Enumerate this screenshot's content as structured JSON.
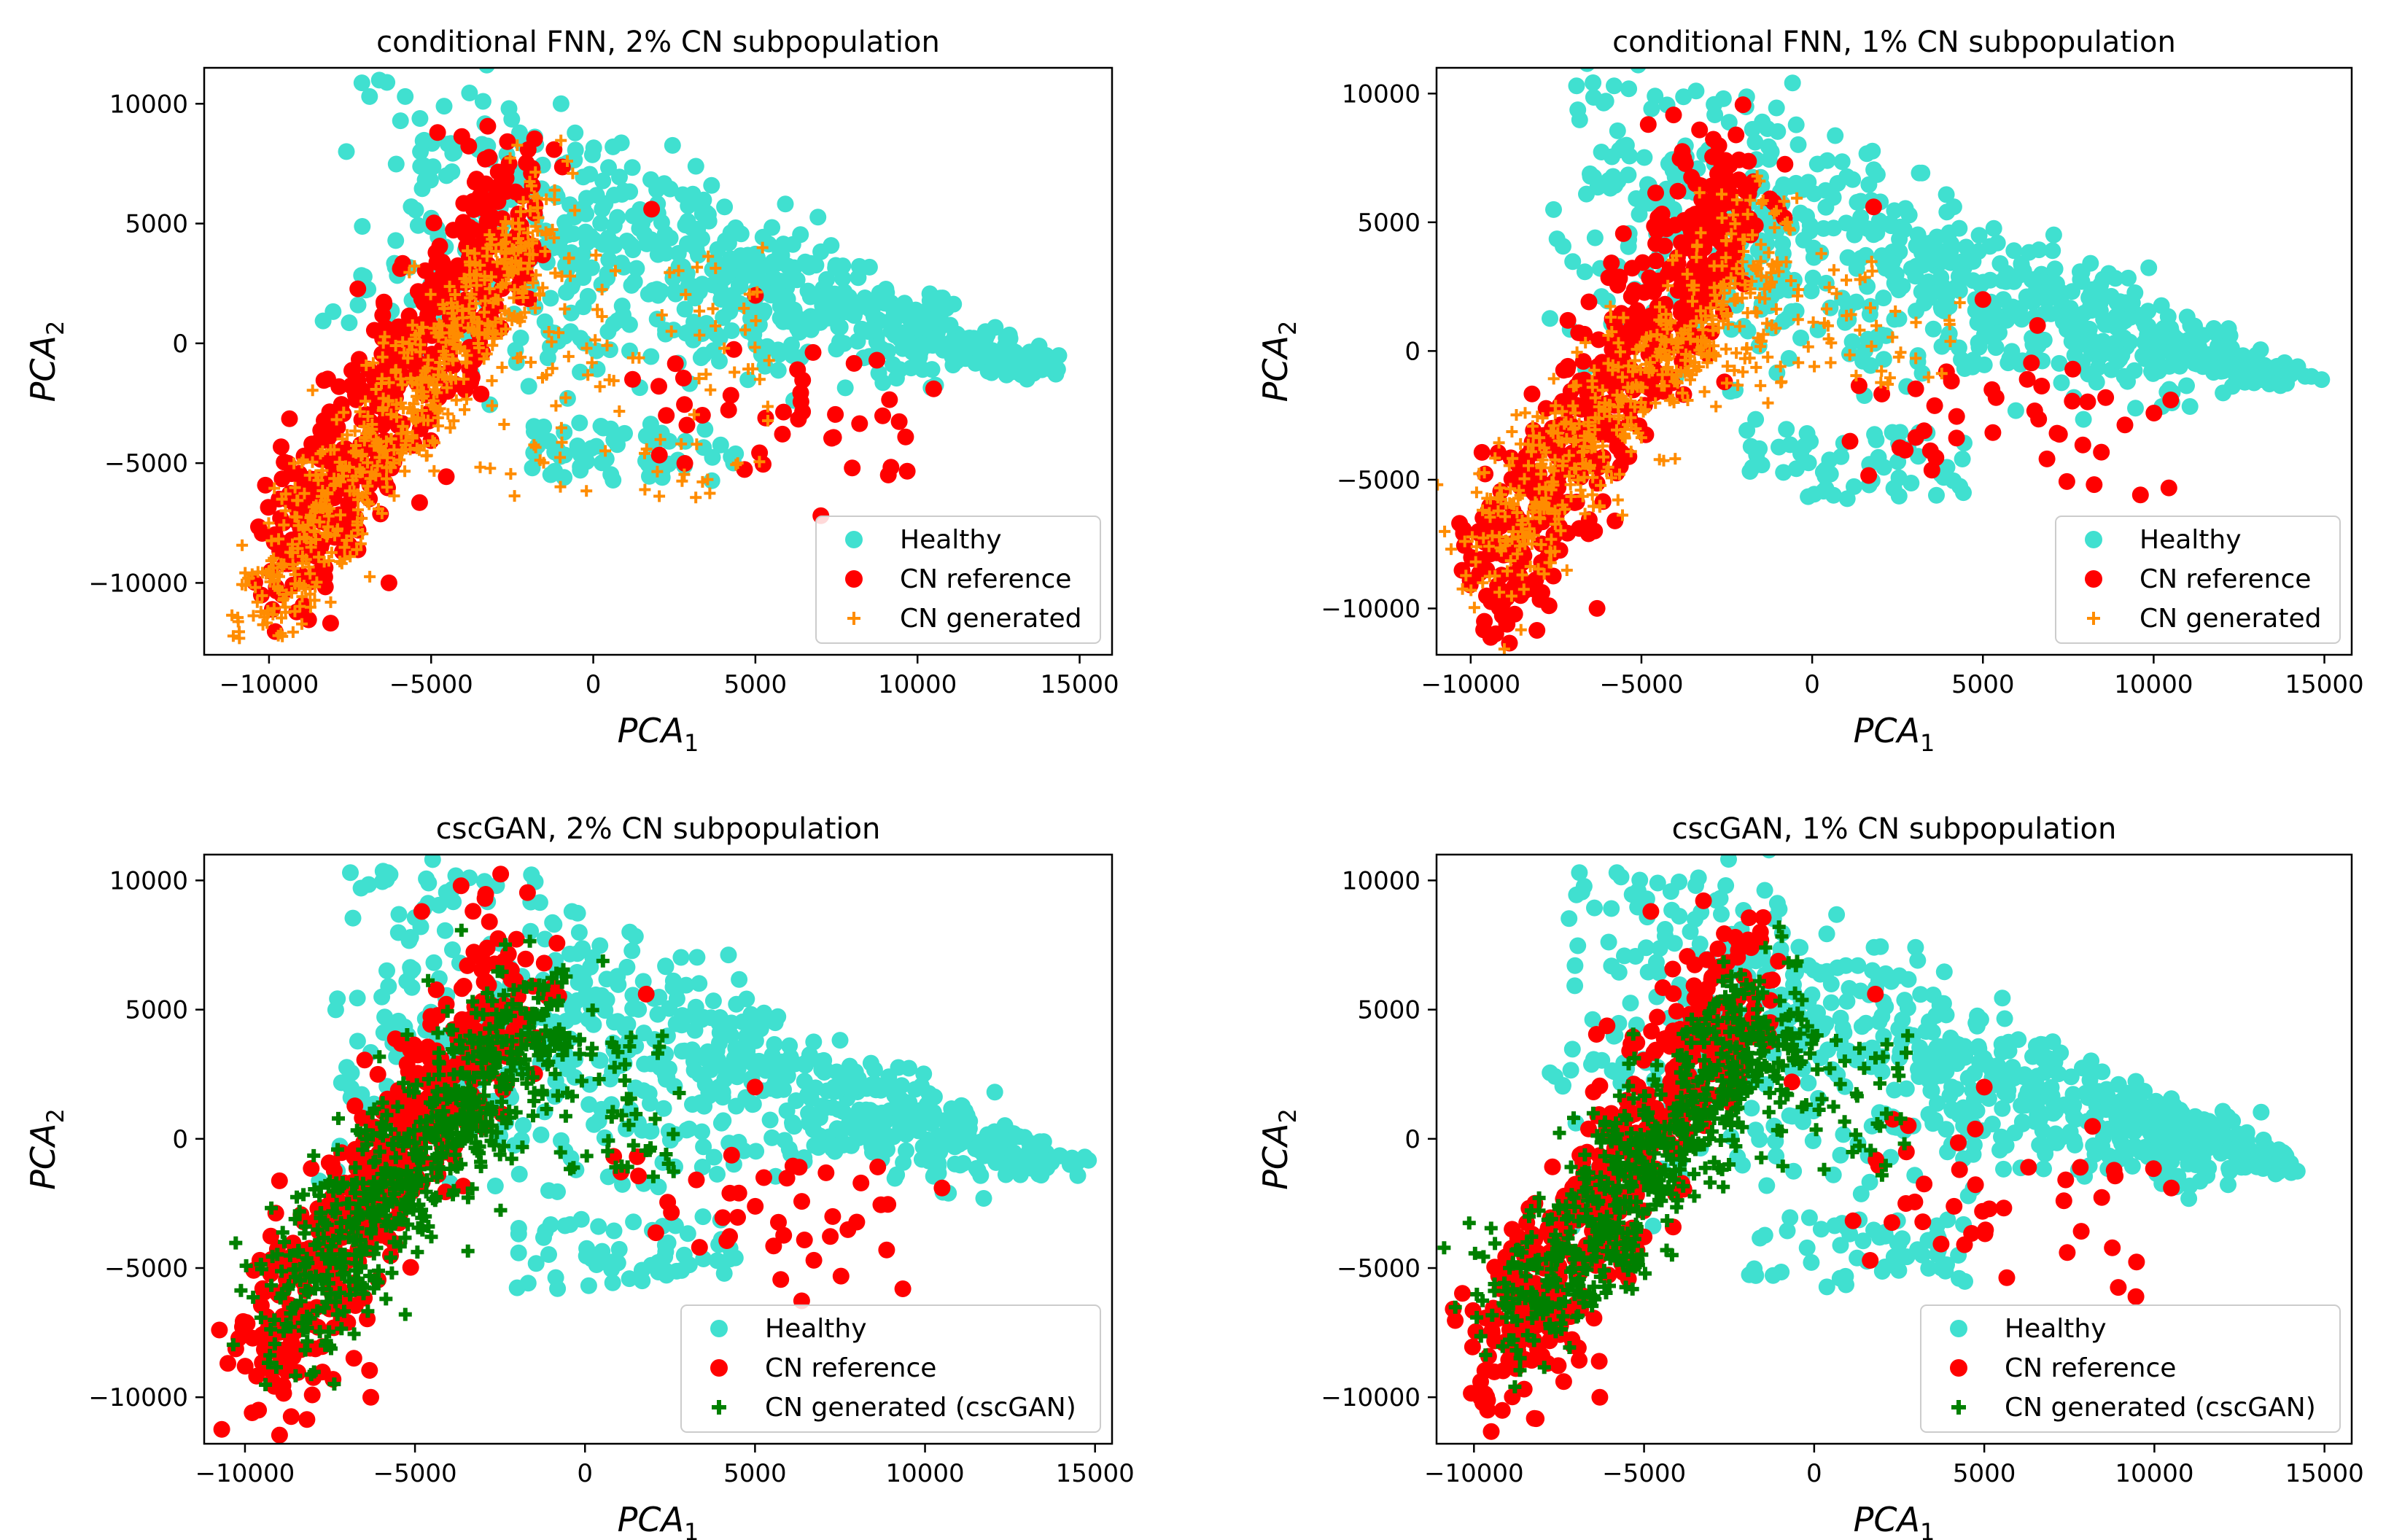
{
  "figure": {
    "colors": {
      "healthy": "#40E0D0",
      "cn_reference": "#FF0000",
      "cn_generated": "#FF8C00",
      "cn_generated_cscgan": "#008000"
    }
  },
  "chart_data": [
    {
      "type": "scatter",
      "title": "conditional FNN, 2% CN subpopulation",
      "xlabel": "PCA",
      "xlabel_sub": "1",
      "ylabel": "PCA",
      "ylabel_sub": "2",
      "xlim": [
        -12000,
        16000
      ],
      "ylim": [
        -13000,
        11500
      ],
      "xticks": [
        -10000,
        -5000,
        0,
        5000,
        10000,
        15000
      ],
      "xtick_labels": [
        "−10000",
        "−5000",
        "0",
        "5000",
        "10000",
        "15000"
      ],
      "yticks": [
        -10000,
        -5000,
        0,
        5000,
        10000
      ],
      "ytick_labels": [
        "−10000",
        "−5000",
        "0",
        "5000",
        "10000"
      ],
      "legend_position": "lower-right",
      "series": [
        {
          "name": "Healthy",
          "marker": "circle",
          "color": "#40E0D0"
        },
        {
          "name": "CN reference",
          "marker": "circle",
          "color": "#FF0000"
        },
        {
          "name": "CN generated",
          "marker": "plus",
          "color": "#FF8C00"
        }
      ]
    },
    {
      "type": "scatter",
      "title": "conditional FNN, 1% CN subpopulation",
      "xlabel": "PCA",
      "xlabel_sub": "1",
      "ylabel": "PCA",
      "ylabel_sub": "2",
      "xlim": [
        -11000,
        15800
      ],
      "ylim": [
        -11800,
        11000
      ],
      "xticks": [
        -10000,
        -5000,
        0,
        5000,
        10000,
        15000
      ],
      "xtick_labels": [
        "−10000",
        "−5000",
        "0",
        "5000",
        "10000",
        "15000"
      ],
      "yticks": [
        -10000,
        -5000,
        0,
        5000,
        10000
      ],
      "ytick_labels": [
        "−10000",
        "−5000",
        "0",
        "5000",
        "10000"
      ],
      "legend_position": "lower-right",
      "series": [
        {
          "name": "Healthy",
          "marker": "circle",
          "color": "#40E0D0"
        },
        {
          "name": "CN reference",
          "marker": "circle",
          "color": "#FF0000"
        },
        {
          "name": "CN generated",
          "marker": "plus",
          "color": "#FF8C00"
        }
      ]
    },
    {
      "type": "scatter",
      "title": "cscGAN, 2% CN subpopulation",
      "xlabel": "PCA",
      "xlabel_sub": "1",
      "ylabel": "PCA",
      "ylabel_sub": "2",
      "xlim": [
        -11200,
        15500
      ],
      "ylim": [
        -11800,
        11000
      ],
      "xticks": [
        -10000,
        -5000,
        0,
        5000,
        10000,
        15000
      ],
      "xtick_labels": [
        "−10000",
        "−5000",
        "0",
        "5000",
        "10000",
        "15000"
      ],
      "yticks": [
        -10000,
        -5000,
        0,
        5000,
        10000
      ],
      "ytick_labels": [
        "−10000",
        "−5000",
        "0",
        "5000",
        "10000"
      ],
      "legend_position": "lower-right",
      "series": [
        {
          "name": "Healthy",
          "marker": "circle",
          "color": "#40E0D0"
        },
        {
          "name": "CN reference",
          "marker": "circle",
          "color": "#FF0000"
        },
        {
          "name": "CN generated (cscGAN)",
          "marker": "plus",
          "color": "#008000"
        }
      ]
    },
    {
      "type": "scatter",
      "title": "cscGAN, 1% CN subpopulation",
      "xlabel": "PCA",
      "xlabel_sub": "1",
      "ylabel": "PCA",
      "ylabel_sub": "2",
      "xlim": [
        -11100,
        15800
      ],
      "ylim": [
        -11800,
        11000
      ],
      "xticks": [
        -10000,
        -5000,
        0,
        5000,
        10000,
        15000
      ],
      "xtick_labels": [
        "−10000",
        "−5000",
        "0",
        "5000",
        "10000",
        "15000"
      ],
      "yticks": [
        -10000,
        -5000,
        0,
        5000,
        10000
      ],
      "ytick_labels": [
        "−10000",
        "−5000",
        "0",
        "5000",
        "10000"
      ],
      "legend_position": "lower-right",
      "series": [
        {
          "name": "Healthy",
          "marker": "circle",
          "color": "#40E0D0"
        },
        {
          "name": "CN reference",
          "marker": "circle",
          "color": "#FF0000"
        },
        {
          "name": "CN generated (cscGAN)",
          "marker": "plus",
          "color": "#008000"
        }
      ]
    }
  ]
}
